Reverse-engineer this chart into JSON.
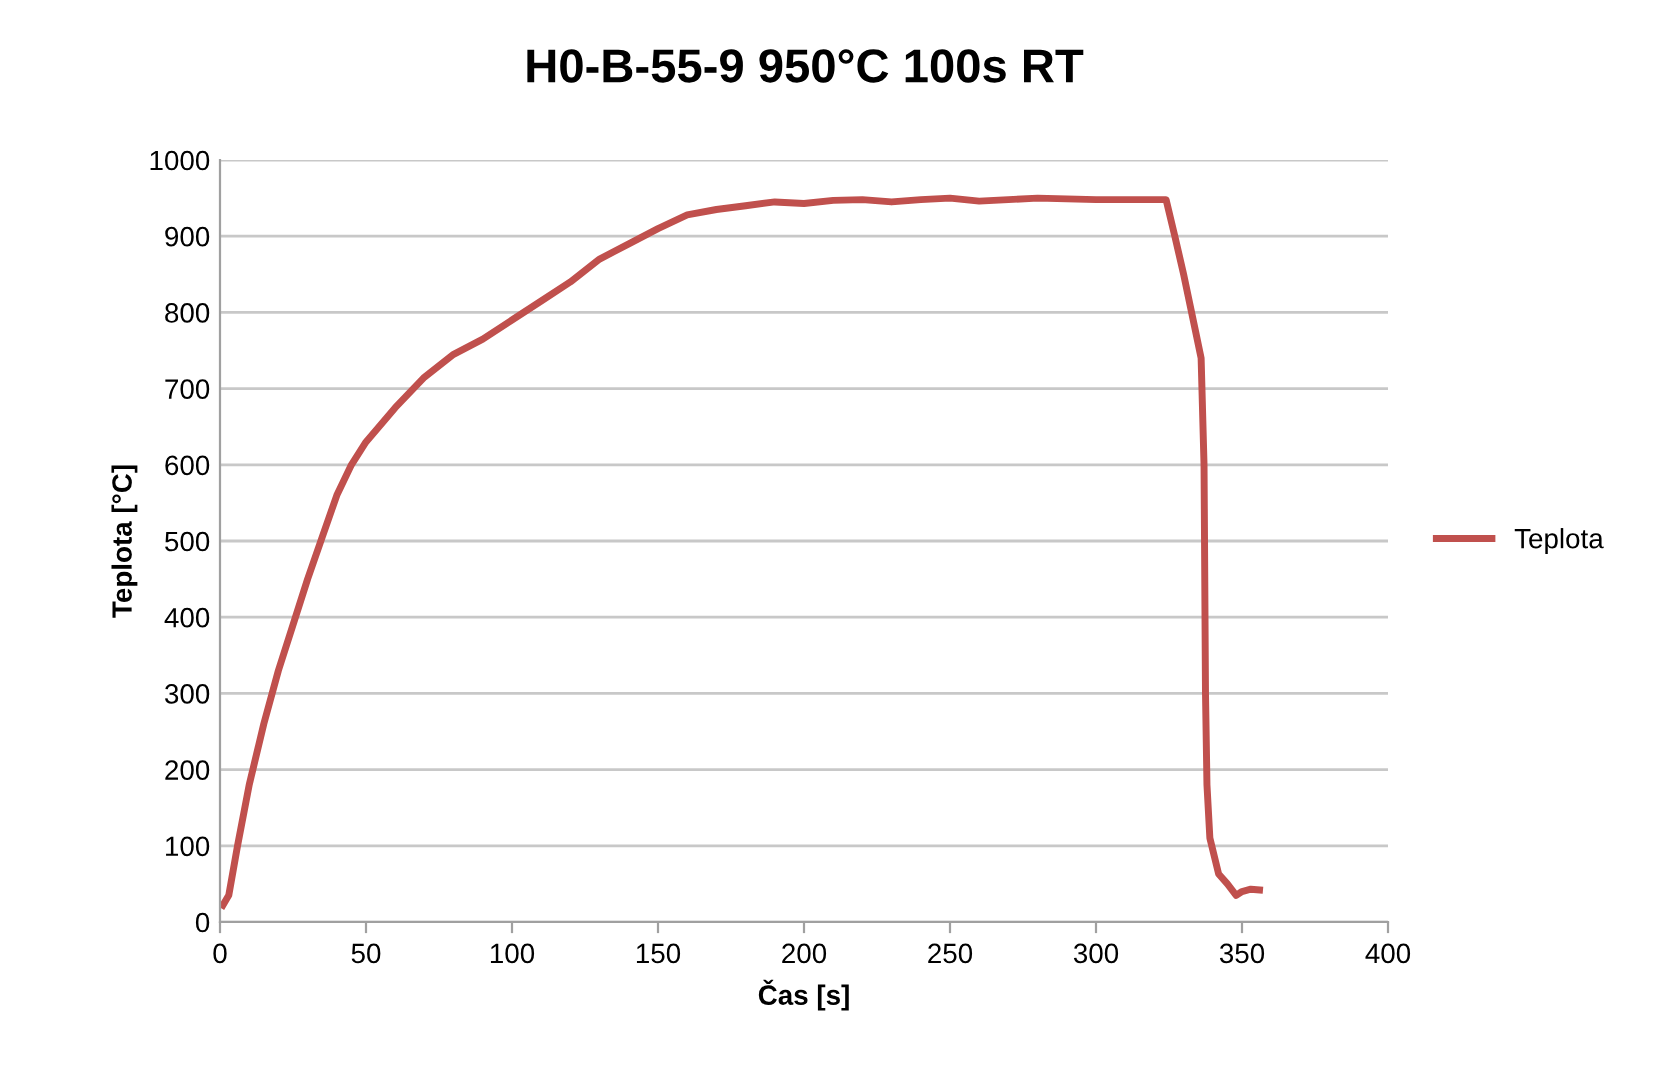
{
  "chart_data": {
    "type": "line",
    "title": "H0-B-55-9 950°C 100s RT",
    "xlabel": "Čas [s]",
    "ylabel": "Teplota [°C]",
    "series": [
      {
        "name": "Teplota",
        "color": "#c0504d",
        "x": [
          1,
          3,
          6,
          10,
          15,
          20,
          25,
          30,
          35,
          40,
          45,
          50,
          60,
          70,
          80,
          90,
          100,
          110,
          120,
          130,
          140,
          150,
          160,
          170,
          180,
          190,
          200,
          210,
          220,
          230,
          240,
          250,
          260,
          270,
          280,
          300,
          320,
          324,
          327,
          330,
          334,
          336,
          337,
          337.5,
          338,
          339,
          342,
          345,
          348,
          350,
          353,
          356
        ],
        "values": [
          22,
          35,
          100,
          180,
          260,
          330,
          390,
          450,
          505,
          560,
          600,
          630,
          675,
          715,
          745,
          765,
          790,
          815,
          840,
          870,
          890,
          910,
          928,
          935,
          940,
          945,
          943,
          947,
          948,
          945,
          948,
          950,
          946,
          948,
          950,
          948,
          948,
          948,
          900,
          850,
          777,
          740,
          600,
          300,
          180,
          110,
          63,
          50,
          35,
          40,
          43,
          42
        ]
      }
    ],
    "xlim": [
      0,
      400
    ],
    "xticks": [
      0,
      50,
      100,
      150,
      200,
      250,
      300,
      350,
      400
    ],
    "ylim": [
      0,
      1000
    ],
    "yticks": [
      0,
      100,
      200,
      300,
      400,
      500,
      600,
      700,
      800,
      900,
      1000
    ],
    "grid": "y",
    "legend": "right",
    "marker": "none",
    "line_style": "solid"
  }
}
